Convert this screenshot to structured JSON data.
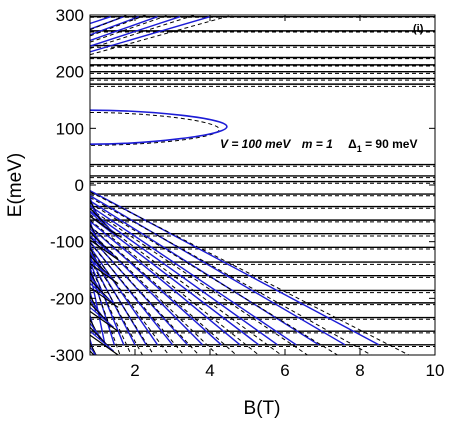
{
  "chart_data": {
    "type": "line",
    "title": "",
    "xlabel": "B(T)",
    "ylabel": "E(meV)",
    "xlim": [
      0.8,
      10
    ],
    "ylim": [
      -300,
      300
    ],
    "x_ticks": [
      2,
      4,
      6,
      8,
      10
    ],
    "y_ticks": [
      -300,
      -200,
      -100,
      0,
      100,
      200,
      300
    ],
    "x_tick_labels": [
      "2",
      "4",
      "6",
      "8",
      "10"
    ],
    "y_tick_labels": [
      "-300",
      "-200",
      "-100",
      "0",
      "100",
      "200",
      "300"
    ],
    "grid": false,
    "legend": "none",
    "panel_label": "(i)",
    "annotation": {
      "V_label": "V = 100 meV",
      "m_label": "m = 1",
      "delta_label": "Δ",
      "delta_sub": "1",
      "delta_value": " = 90 meV"
    },
    "colors": {
      "solid_series": "#1c1cd6",
      "dashed_series": "#000000",
      "flat_levels": "#000000"
    },
    "flat_levels_meV": [
      297,
      272,
      246,
      225,
      212,
      200,
      188,
      178,
      36,
      16,
      6,
      -16,
      -38,
      -62,
      -86,
      -110,
      -136,
      -160,
      -186,
      -208,
      -234,
      -258,
      -282
    ],
    "dashed_levels_meV": [
      296,
      270,
      243,
      223,
      210,
      197,
      185,
      174,
      33,
      13,
      3,
      -19,
      -41,
      -65,
      -90,
      -113,
      -140,
      -163,
      -190,
      -211,
      -237,
      -261,
      -285
    ],
    "gap_state_solid": {
      "E_low": 72,
      "E_high": 132,
      "B_tip": 4.45,
      "E_tip": 103
    },
    "gap_state_dashed": {
      "E_low": 70,
      "E_high": 128,
      "B_tip": 4.25,
      "E_tip": 98
    },
    "descending_fan_solid": [
      {
        "B_end": 8.5,
        "E_end": -282
      },
      {
        "B_end": 7.6,
        "E_end": -282
      },
      {
        "B_end": 6.9,
        "E_end": -282
      },
      {
        "B_end": 6.3,
        "E_end": -282
      },
      {
        "B_end": 5.8,
        "E_end": -282
      },
      {
        "B_end": 5.3,
        "E_end": -282
      },
      {
        "B_end": 4.8,
        "E_end": -282
      },
      {
        "B_end": 4.3,
        "E_end": -282
      },
      {
        "B_end": 3.8,
        "E_end": -282
      },
      {
        "B_end": 3.4,
        "E_end": -282
      },
      {
        "B_end": 3.0,
        "E_end": -282
      },
      {
        "B_end": 2.6,
        "E_end": -282
      },
      {
        "B_end": 2.3,
        "E_end": -282
      },
      {
        "B_end": 2.0,
        "E_end": -282
      },
      {
        "B_end": 1.7,
        "E_end": -282
      },
      {
        "B_end": 1.45,
        "E_end": -282
      },
      {
        "B_end": 1.2,
        "E_end": -282
      }
    ],
    "descending_fan_dashed": [
      {
        "B_end": 9.3,
        "E_end": -300
      },
      {
        "B_end": 8.3,
        "E_end": -300
      },
      {
        "B_end": 7.4,
        "E_end": -300
      },
      {
        "B_end": 6.6,
        "E_end": -300
      },
      {
        "B_end": 5.9,
        "E_end": -300
      },
      {
        "B_end": 5.3,
        "E_end": -300
      },
      {
        "B_end": 4.7,
        "E_end": -300
      },
      {
        "B_end": 4.2,
        "E_end": -300
      },
      {
        "B_end": 3.7,
        "E_end": -300
      },
      {
        "B_end": 3.3,
        "E_end": -300
      },
      {
        "B_end": 2.9,
        "E_end": -300
      },
      {
        "B_end": 2.5,
        "E_end": -300
      },
      {
        "B_end": 2.2,
        "E_end": -300
      },
      {
        "B_end": 1.9,
        "E_end": -300
      },
      {
        "B_end": 1.6,
        "E_end": -300
      }
    ],
    "ascending_fan_solid": [
      {
        "B_end": 4.0,
        "E_end": 297
      },
      {
        "B_end": 3.2,
        "E_end": 297
      },
      {
        "B_end": 2.6,
        "E_end": 297
      },
      {
        "B_end": 2.1,
        "E_end": 297
      },
      {
        "B_end": 1.7,
        "E_end": 297
      },
      {
        "B_end": 1.35,
        "E_end": 297
      }
    ],
    "ascending_fan_dashed": [
      {
        "B_end": 4.6,
        "E_end": 300
      },
      {
        "B_end": 3.6,
        "E_end": 300
      },
      {
        "B_end": 2.9,
        "E_end": 300
      },
      {
        "B_end": 2.3,
        "E_end": 300
      },
      {
        "B_end": 1.8,
        "E_end": 300
      }
    ]
  }
}
